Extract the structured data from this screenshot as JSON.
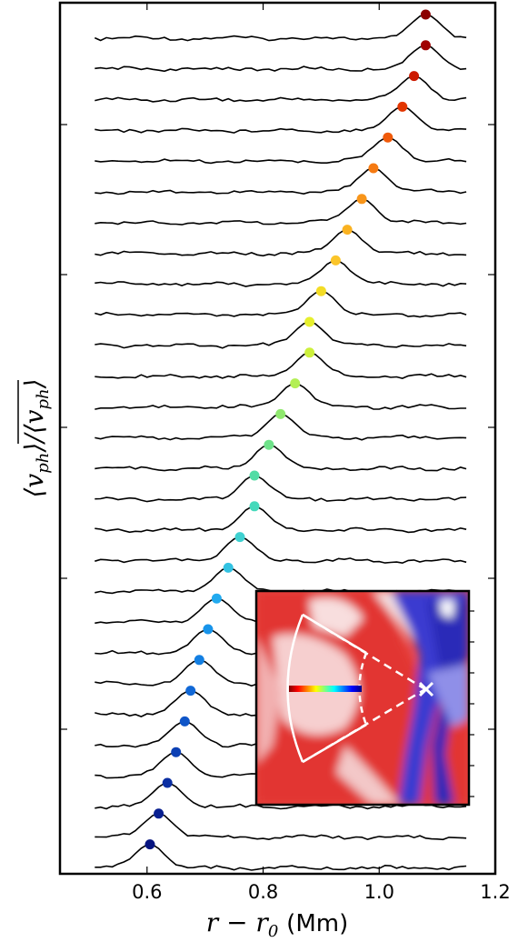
{
  "chart_data": {
    "type": "line",
    "title": "",
    "xlabel": "r − r₀ (Mm)",
    "xlabel_math": "r − r",
    "xlabel_sub": "0",
    "xlabel_unit": "(Mm)",
    "ylabel": "⟨v_ph⟩ / ⟨v_ph⟩ (overline)",
    "ylabel_left": "⟨v",
    "ylabel_sub": "ph",
    "ylabel_mid": "⟩/⟨v",
    "ylabel_sub2": "ph",
    "ylabel_right": "⟩",
    "xlim": [
      0.45,
      1.2
    ],
    "xticks": [
      0.6,
      0.8,
      1.0,
      1.2
    ],
    "xtick_labels": [
      "0.6",
      "0.8",
      "1.0",
      "1.2"
    ],
    "grid": false,
    "profile_x_range": [
      0.51,
      1.15
    ],
    "profile_count": 28,
    "peak_positions": [
      1.08,
      1.08,
      1.06,
      1.04,
      1.015,
      0.99,
      0.97,
      0.945,
      0.925,
      0.9,
      0.88,
      0.88,
      0.855,
      0.83,
      0.81,
      0.785,
      0.785,
      0.76,
      0.74,
      0.72,
      0.705,
      0.69,
      0.675,
      0.665,
      0.65,
      0.635,
      0.62,
      0.605
    ],
    "marker_colors": [
      "#8b0000",
      "#a00000",
      "#cc1a00",
      "#e23500",
      "#f05a0a",
      "#f57a12",
      "#f8951a",
      "#fab220",
      "#fbc52a",
      "#f3dc26",
      "#e6ef2e",
      "#cdf03c",
      "#b3ef55",
      "#8fe86e",
      "#6fe28a",
      "#52dca5",
      "#45d9bb",
      "#3ed0d0",
      "#32c2e2",
      "#22aaef",
      "#1894ea",
      "#137fe2",
      "#1168d6",
      "#0f55c8",
      "#0c40b4",
      "#0a2ea2",
      "#081f90",
      "#061480"
    ],
    "inset": {
      "type": "heatmap",
      "colormap": "bwr",
      "inner_colorbar": "jet",
      "marker": "x"
    }
  }
}
